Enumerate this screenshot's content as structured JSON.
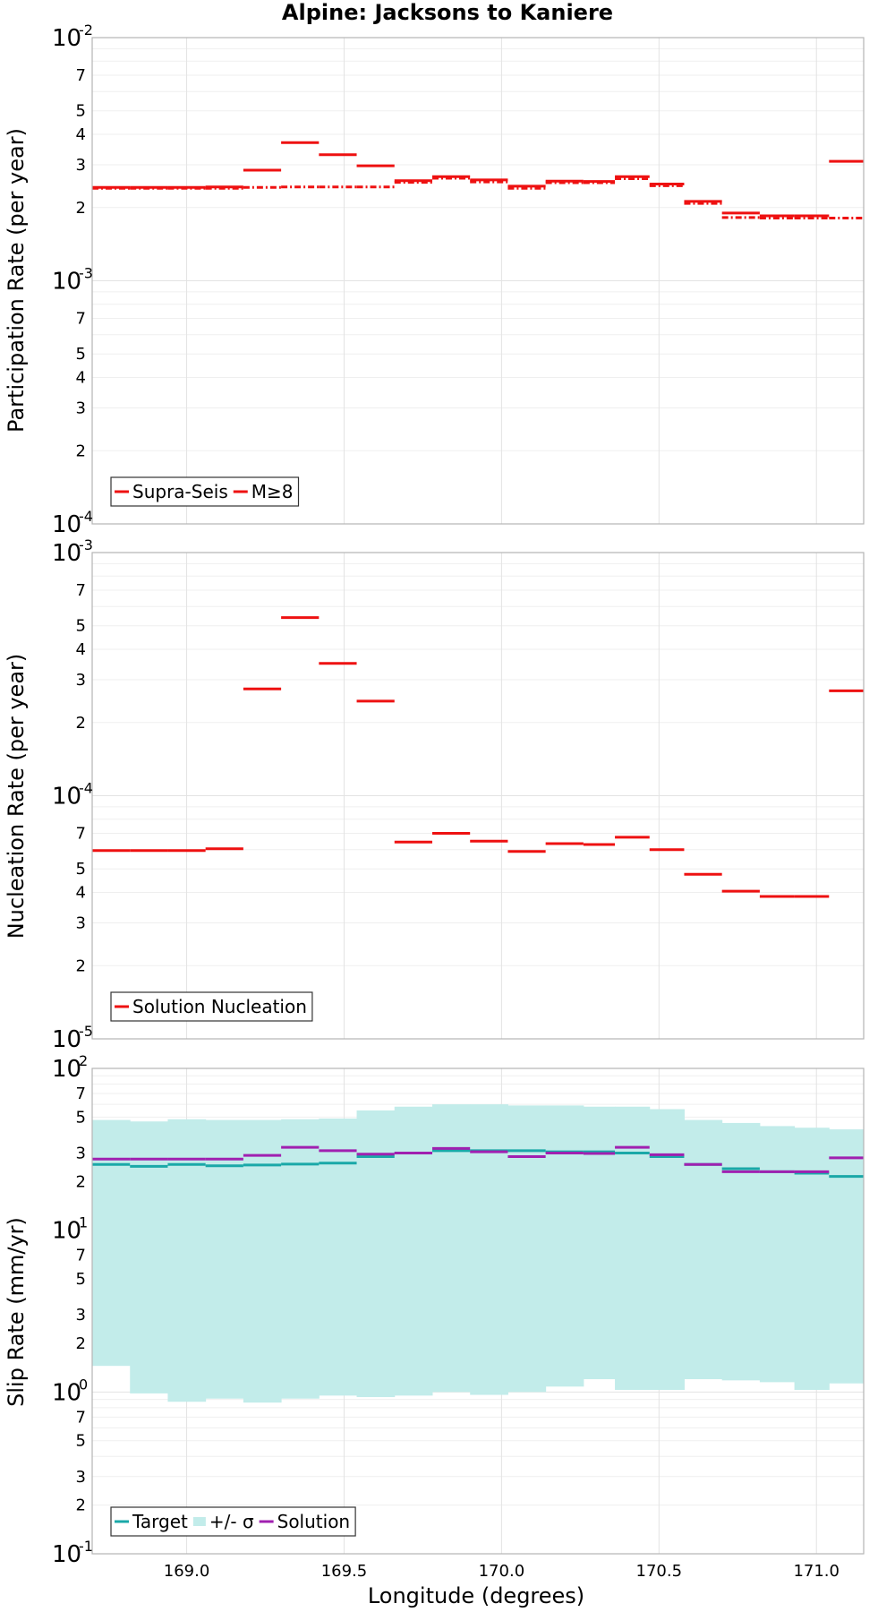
{
  "chart_data": [
    {
      "type": "line",
      "title": "Alpine: Jacksons to Kaniere",
      "ylabel": "Participation Rate (per year)",
      "xlabel": "",
      "xlim": [
        168.7,
        171.15
      ],
      "ylim": [
        0.0001,
        0.01
      ],
      "yscale": "log",
      "grid": true,
      "legend_position": "bottom-left",
      "series": [
        {
          "name": "Supra-Seis",
          "style": "solid",
          "color": "#ee1111",
          "segments": [
            [
              168.7,
              168.82,
              0.00242
            ],
            [
              168.82,
              168.94,
              0.00242
            ],
            [
              168.94,
              169.06,
              0.00242
            ],
            [
              169.06,
              169.18,
              0.00243
            ],
            [
              169.18,
              169.3,
              0.00285
            ],
            [
              169.3,
              169.42,
              0.0037
            ],
            [
              169.42,
              169.54,
              0.0033
            ],
            [
              169.54,
              169.66,
              0.00297
            ],
            [
              169.66,
              169.78,
              0.00258
            ],
            [
              169.78,
              169.9,
              0.00268
            ],
            [
              169.9,
              170.02,
              0.0026
            ],
            [
              170.02,
              170.14,
              0.00245
            ],
            [
              170.14,
              170.26,
              0.00257
            ],
            [
              170.26,
              170.36,
              0.00256
            ],
            [
              170.36,
              170.47,
              0.00268
            ],
            [
              170.47,
              170.58,
              0.0025
            ],
            [
              170.58,
              170.7,
              0.00212
            ],
            [
              170.7,
              170.82,
              0.0019
            ],
            [
              170.82,
              170.93,
              0.00185
            ],
            [
              170.93,
              171.04,
              0.00185
            ],
            [
              171.04,
              171.15,
              0.0031
            ]
          ]
        },
        {
          "name": "M≥8",
          "style": "dashdot",
          "color": "#ee1111",
          "segments": [
            [
              168.7,
              168.82,
              0.0024
            ],
            [
              168.82,
              168.94,
              0.0024
            ],
            [
              168.94,
              169.06,
              0.0024
            ],
            [
              169.06,
              169.18,
              0.0024
            ],
            [
              169.18,
              169.3,
              0.00242
            ],
            [
              169.3,
              169.42,
              0.00243
            ],
            [
              169.42,
              169.54,
              0.00243
            ],
            [
              169.54,
              169.66,
              0.00243
            ],
            [
              169.66,
              169.78,
              0.00254
            ],
            [
              169.78,
              169.9,
              0.00264
            ],
            [
              169.9,
              170.02,
              0.00255
            ],
            [
              170.02,
              170.14,
              0.0024
            ],
            [
              170.14,
              170.26,
              0.00253
            ],
            [
              170.26,
              170.36,
              0.00253
            ],
            [
              170.36,
              170.47,
              0.00263
            ],
            [
              170.47,
              170.58,
              0.00246
            ],
            [
              170.58,
              170.7,
              0.00208
            ],
            [
              170.7,
              170.82,
              0.00182
            ],
            [
              170.82,
              170.93,
              0.00181
            ],
            [
              170.93,
              171.04,
              0.00181
            ],
            [
              171.04,
              171.15,
              0.00181
            ]
          ]
        }
      ]
    },
    {
      "type": "line",
      "ylabel": "Nucleation Rate (per year)",
      "xlabel": "",
      "xlim": [
        168.7,
        171.15
      ],
      "ylim": [
        1e-05,
        0.001
      ],
      "yscale": "log",
      "grid": true,
      "legend_position": "bottom-left",
      "series": [
        {
          "name": "Solution Nucleation",
          "style": "solid",
          "color": "#ee1111",
          "segments": [
            [
              168.7,
              168.82,
              5.95e-05
            ],
            [
              168.82,
              168.94,
              5.95e-05
            ],
            [
              168.94,
              169.06,
              5.95e-05
            ],
            [
              169.06,
              169.18,
              6.05e-05
            ],
            [
              169.18,
              169.3,
              0.000275
            ],
            [
              169.3,
              169.42,
              0.00054
            ],
            [
              169.42,
              169.54,
              0.00035
            ],
            [
              169.54,
              169.66,
              0.000245
            ],
            [
              169.66,
              169.78,
              6.45e-05
            ],
            [
              169.78,
              169.9,
              7e-05
            ],
            [
              169.9,
              170.02,
              6.5e-05
            ],
            [
              170.02,
              170.14,
              5.9e-05
            ],
            [
              170.14,
              170.26,
              6.35e-05
            ],
            [
              170.26,
              170.36,
              6.3e-05
            ],
            [
              170.36,
              170.47,
              6.75e-05
            ],
            [
              170.47,
              170.58,
              6e-05
            ],
            [
              170.58,
              170.7,
              4.75e-05
            ],
            [
              170.7,
              170.82,
              4.05e-05
            ],
            [
              170.82,
              170.93,
              3.85e-05
            ],
            [
              170.93,
              171.04,
              3.85e-05
            ],
            [
              171.04,
              171.15,
              0.00027
            ]
          ]
        }
      ]
    },
    {
      "type": "line",
      "ylabel": "Slip Rate (mm/yr)",
      "xlabel": "Longitude (degrees)",
      "xlim": [
        168.7,
        171.15
      ],
      "ylim": [
        0.1,
        100
      ],
      "yscale": "log",
      "xticks": [
        "169.0",
        "169.5",
        "170.0",
        "170.5",
        "171.0"
      ],
      "grid": true,
      "legend_position": "bottom-left",
      "series": [
        {
          "name": "Target",
          "style": "solid",
          "color": "#1aa8a8",
          "segments": [
            [
              168.7,
              168.82,
              25.5
            ],
            [
              168.82,
              168.94,
              24.8
            ],
            [
              168.94,
              169.06,
              25.5
            ],
            [
              169.06,
              169.18,
              25.0
            ],
            [
              169.18,
              169.3,
              25.3
            ],
            [
              169.3,
              169.42,
              25.6
            ],
            [
              169.42,
              169.54,
              26.0
            ],
            [
              169.54,
              169.66,
              28.5
            ],
            [
              169.66,
              169.78,
              30.0
            ],
            [
              169.78,
              169.9,
              31.0
            ],
            [
              169.9,
              170.02,
              31.0
            ],
            [
              170.02,
              170.14,
              31.0
            ],
            [
              170.14,
              170.26,
              30.5
            ],
            [
              170.26,
              170.36,
              30.5
            ],
            [
              170.36,
              170.47,
              30.0
            ],
            [
              170.47,
              170.58,
              28.5
            ],
            [
              170.58,
              170.7,
              25.5
            ],
            [
              170.7,
              170.82,
              24.0
            ],
            [
              170.82,
              170.93,
              23.0
            ],
            [
              170.93,
              171.04,
              22.5
            ],
            [
              171.04,
              171.15,
              21.5
            ]
          ]
        },
        {
          "name": "+/- σ",
          "style": "fill",
          "color": "#c2ecea",
          "bands": [
            [
              168.7,
              168.82,
              1.45,
              48
            ],
            [
              168.82,
              168.94,
              0.98,
              47
            ],
            [
              168.94,
              169.06,
              0.87,
              48.5
            ],
            [
              169.06,
              169.18,
              0.91,
              48
            ],
            [
              169.18,
              169.3,
              0.86,
              48
            ],
            [
              169.3,
              169.42,
              0.91,
              48.5
            ],
            [
              169.42,
              169.54,
              0.95,
              49
            ],
            [
              169.54,
              169.66,
              0.93,
              55
            ],
            [
              169.66,
              169.78,
              0.95,
              58
            ],
            [
              169.78,
              169.9,
              1.0,
              60
            ],
            [
              169.9,
              170.02,
              0.96,
              60
            ],
            [
              170.02,
              170.14,
              1.0,
              59
            ],
            [
              170.14,
              170.26,
              1.08,
              59
            ],
            [
              170.26,
              170.36,
              1.2,
              58
            ],
            [
              170.36,
              170.47,
              1.03,
              58
            ],
            [
              170.47,
              170.58,
              1.03,
              56
            ],
            [
              170.58,
              170.7,
              1.2,
              48
            ],
            [
              170.7,
              170.82,
              1.18,
              46
            ],
            [
              170.82,
              170.93,
              1.15,
              44
            ],
            [
              170.93,
              171.04,
              1.03,
              43
            ],
            [
              171.04,
              171.15,
              1.13,
              42
            ]
          ]
        },
        {
          "name": "Solution",
          "style": "solid",
          "color": "#a020b0",
          "segments": [
            [
              168.7,
              168.82,
              27.5
            ],
            [
              168.82,
              168.94,
              27.5
            ],
            [
              168.94,
              169.06,
              27.5
            ],
            [
              169.06,
              169.18,
              27.5
            ],
            [
              169.18,
              169.3,
              29.0
            ],
            [
              169.3,
              169.42,
              32.5
            ],
            [
              169.42,
              169.54,
              31.0
            ],
            [
              169.54,
              169.66,
              29.5
            ],
            [
              169.66,
              169.78,
              30.0
            ],
            [
              169.78,
              169.9,
              32.0
            ],
            [
              169.9,
              170.02,
              30.5
            ],
            [
              170.02,
              170.14,
              28.5
            ],
            [
              170.14,
              170.26,
              30.0
            ],
            [
              170.26,
              170.36,
              29.8
            ],
            [
              170.36,
              170.47,
              32.5
            ],
            [
              170.47,
              170.58,
              29.3
            ],
            [
              170.58,
              170.7,
              25.5
            ],
            [
              170.7,
              170.82,
              23.0
            ],
            [
              170.82,
              170.93,
              23.0
            ],
            [
              170.93,
              171.04,
              23.0
            ],
            [
              171.04,
              171.15,
              28.0
            ]
          ]
        }
      ]
    }
  ]
}
